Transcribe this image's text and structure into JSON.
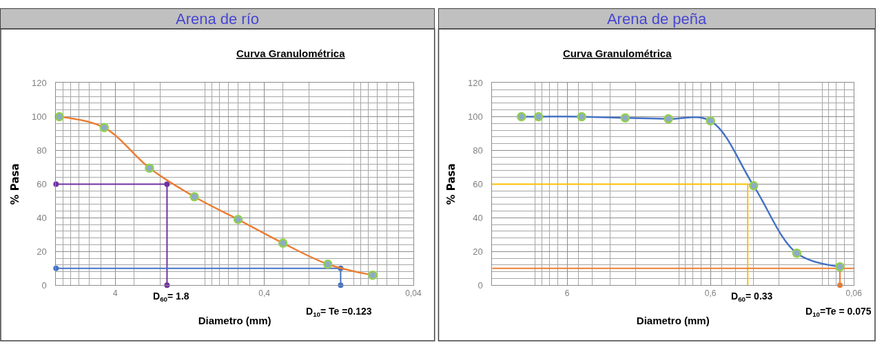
{
  "chart_data": [
    {
      "type": "line",
      "title": "Arena de río",
      "subtitle": "Curva Granulométrica",
      "xlabel": "Diametro (mm)",
      "ylabel": "% Pasa",
      "log": "x",
      "grid": true,
      "marker": "circle",
      "xlim": [
        10,
        0.04
      ],
      "xticks": [
        4,
        {
          "value": 0.4,
          "label": "0,4"
        },
        {
          "value": 0.04,
          "label": "0,04"
        }
      ],
      "ylim": [
        0,
        120
      ],
      "yticks": [
        0,
        20,
        40,
        60,
        80,
        100,
        120
      ],
      "series": [
        {
          "color": "#7030a0",
          "x": [
            10,
            1.8,
            1.8
          ],
          "values": [
            60,
            60,
            0
          ]
        },
        {
          "color": "#4472c4",
          "x": [
            10,
            0.123,
            0.123
          ],
          "values": [
            10,
            10,
            0
          ]
        },
        {
          "color": "#ed7d31",
          "x": [
            9.5,
            4.75,
            2.36,
            1.18,
            0.6,
            0.3,
            0.15,
            0.075
          ],
          "values": [
            100,
            93.5,
            69.5,
            52.5,
            39,
            25,
            12.5,
            6
          ]
        }
      ],
      "annotations": [
        {
          "text": "D$_{60}$= 1.8",
          "x": 1.8,
          "y": 0
        },
        {
          "text": "D$_{10}$= Te =0.123",
          "x": 0.123,
          "y": 0
        }
      ]
    },
    {
      "type": "line",
      "title": "Arena de peña",
      "subtitle": "Curva Granulométrica",
      "xlabel": "Diametro (mm)",
      "ylabel": "% Pasa",
      "log": "x",
      "grid": true,
      "marker": "circle",
      "xlim": [
        20,
        0.06
      ],
      "xticks": [
        6,
        {
          "value": 0.6,
          "label": "0,6"
        },
        {
          "value": 0.06,
          "label": "0,06"
        }
      ],
      "ylim": [
        0,
        120
      ],
      "yticks": [
        0,
        20,
        40,
        60,
        80,
        100,
        120
      ],
      "series": [
        {
          "color": "#ffc000",
          "x": [
            20,
            0.33,
            0.33
          ],
          "values": [
            60,
            60,
            0
          ],
          "marker": "none"
        },
        {
          "color": "#ed7d31",
          "x": [
            20,
            0.06
          ],
          "values": [
            10,
            10
          ],
          "marker": "none"
        },
        {
          "color": "#ed7d31",
          "x": [
            0.075,
            0.075
          ],
          "values": [
            10,
            0
          ]
        },
        {
          "color": "#4472c4",
          "x": [
            12.5,
            9.5,
            4.75,
            2.36,
            1.18,
            0.6,
            0.3,
            0.15,
            0.075
          ],
          "values": [
            100,
            100,
            100,
            99.3,
            98.7,
            97.5,
            59,
            19,
            11
          ]
        }
      ],
      "annotations": [
        {
          "text": "D$_{60}$= 0.33",
          "x": 0.33,
          "y": 0
        },
        {
          "text": "D$_{10}$=Te = 0.075",
          "x": 0.075,
          "y": 0
        }
      ]
    }
  ]
}
